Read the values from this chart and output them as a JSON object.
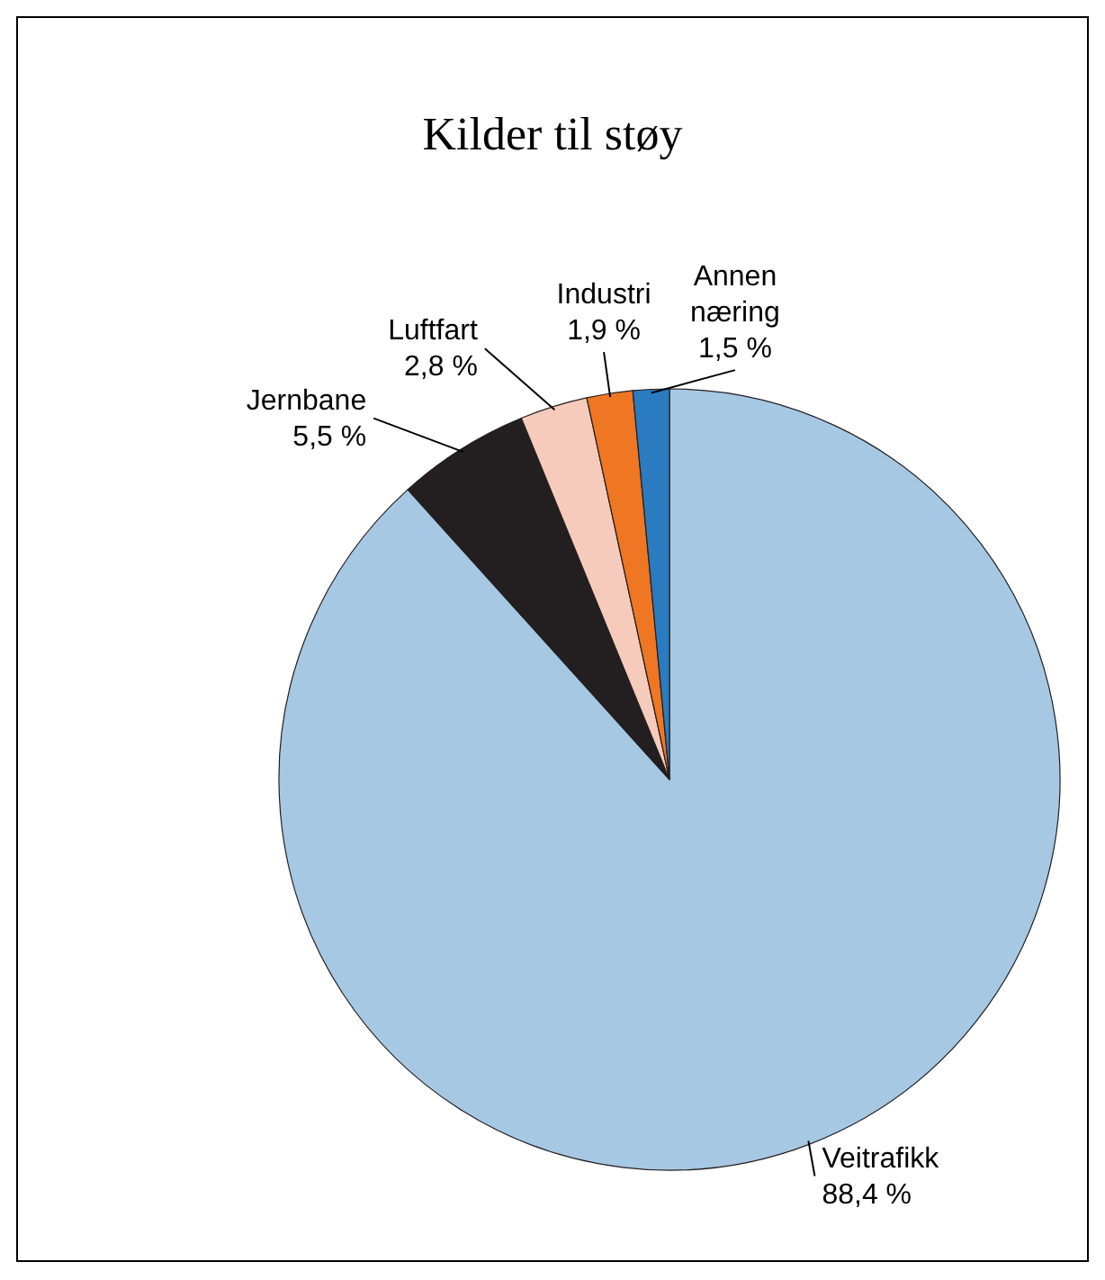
{
  "chart_data": {
    "type": "pie",
    "title": "Kilder til støy",
    "categories": [
      "Veitrafikk",
      "Jernbane",
      "Luftfart",
      "Industri",
      "Annen næring"
    ],
    "values": [
      88.4,
      5.5,
      2.8,
      1.9,
      1.5
    ],
    "value_labels": [
      "88,4 %",
      "5,5 %",
      "2,8 %",
      "1,9 %",
      "1,5 %"
    ],
    "colors": [
      "#a6c8e3",
      "#231f20",
      "#f6cbbb",
      "#ef7622",
      "#2a7bbf"
    ]
  }
}
